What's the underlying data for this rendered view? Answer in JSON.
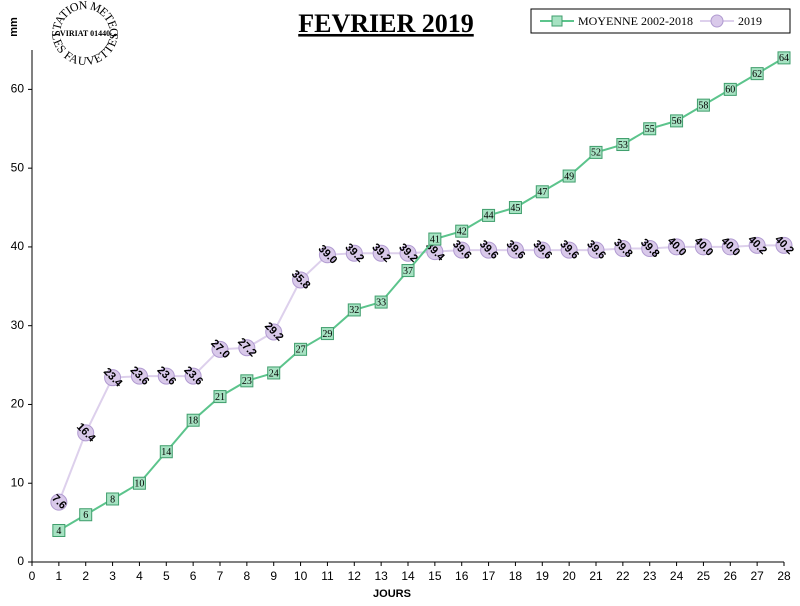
{
  "chart_data": {
    "type": "line",
    "title": "FEVRIER 2019",
    "y_label": "mm",
    "x_label": "JOURS",
    "logo": {
      "top": "STATION METEO",
      "middle": "VIRIAT 01440",
      "bottom": "LES FAUVETTES"
    },
    "x": [
      1,
      2,
      3,
      4,
      5,
      6,
      7,
      8,
      9,
      10,
      11,
      12,
      13,
      14,
      15,
      16,
      17,
      18,
      19,
      20,
      21,
      22,
      23,
      24,
      25,
      26,
      27,
      28
    ],
    "series": [
      {
        "name": "MOYENNE 2002-2018",
        "color": "#5cc48c",
        "marker": "square",
        "values": [
          4,
          6,
          8,
          10,
          14,
          18,
          21,
          23,
          24,
          27,
          29,
          32,
          33,
          37,
          41,
          42,
          44,
          45,
          47,
          49,
          52,
          53,
          55,
          56,
          58,
          60,
          62,
          64
        ]
      },
      {
        "name": "2019",
        "color": "#ddd0ec",
        "marker": "circle",
        "values": [
          7.6,
          16.4,
          23.4,
          23.6,
          23.6,
          23.6,
          27.0,
          27.2,
          29.2,
          35.8,
          39.0,
          39.2,
          39.2,
          39.2,
          39.4,
          39.6,
          39.6,
          39.6,
          39.6,
          39.6,
          39.6,
          39.8,
          39.8,
          40.0,
          40.0,
          40.0,
          40.2,
          40.2
        ],
        "value_labels": [
          "7.6",
          "16.4",
          "23.4",
          "23.6",
          "23.6",
          "23.6",
          "27.0",
          "27.2",
          "29.2",
          "35.8",
          "39.0",
          "39.2",
          "39.2",
          "39.2",
          "39.4",
          "39.6",
          "39.6",
          "39.6",
          "39.6",
          "39.6",
          "39.6",
          "39.8",
          "39.8",
          "40.0",
          "40.0",
          "40.0",
          "40.2",
          "40.2"
        ]
      }
    ],
    "xlim": [
      0,
      28
    ],
    "xticks": [
      0,
      1,
      2,
      3,
      4,
      5,
      6,
      7,
      8,
      9,
      10,
      11,
      12,
      13,
      14,
      15,
      16,
      17,
      18,
      19,
      20,
      21,
      22,
      23,
      24,
      25,
      26,
      27,
      28
    ],
    "ylim": [
      0,
      65
    ],
    "yticks": [
      0,
      10,
      20,
      30,
      40,
      50,
      60
    ],
    "grid": false,
    "legend": "top-right"
  }
}
